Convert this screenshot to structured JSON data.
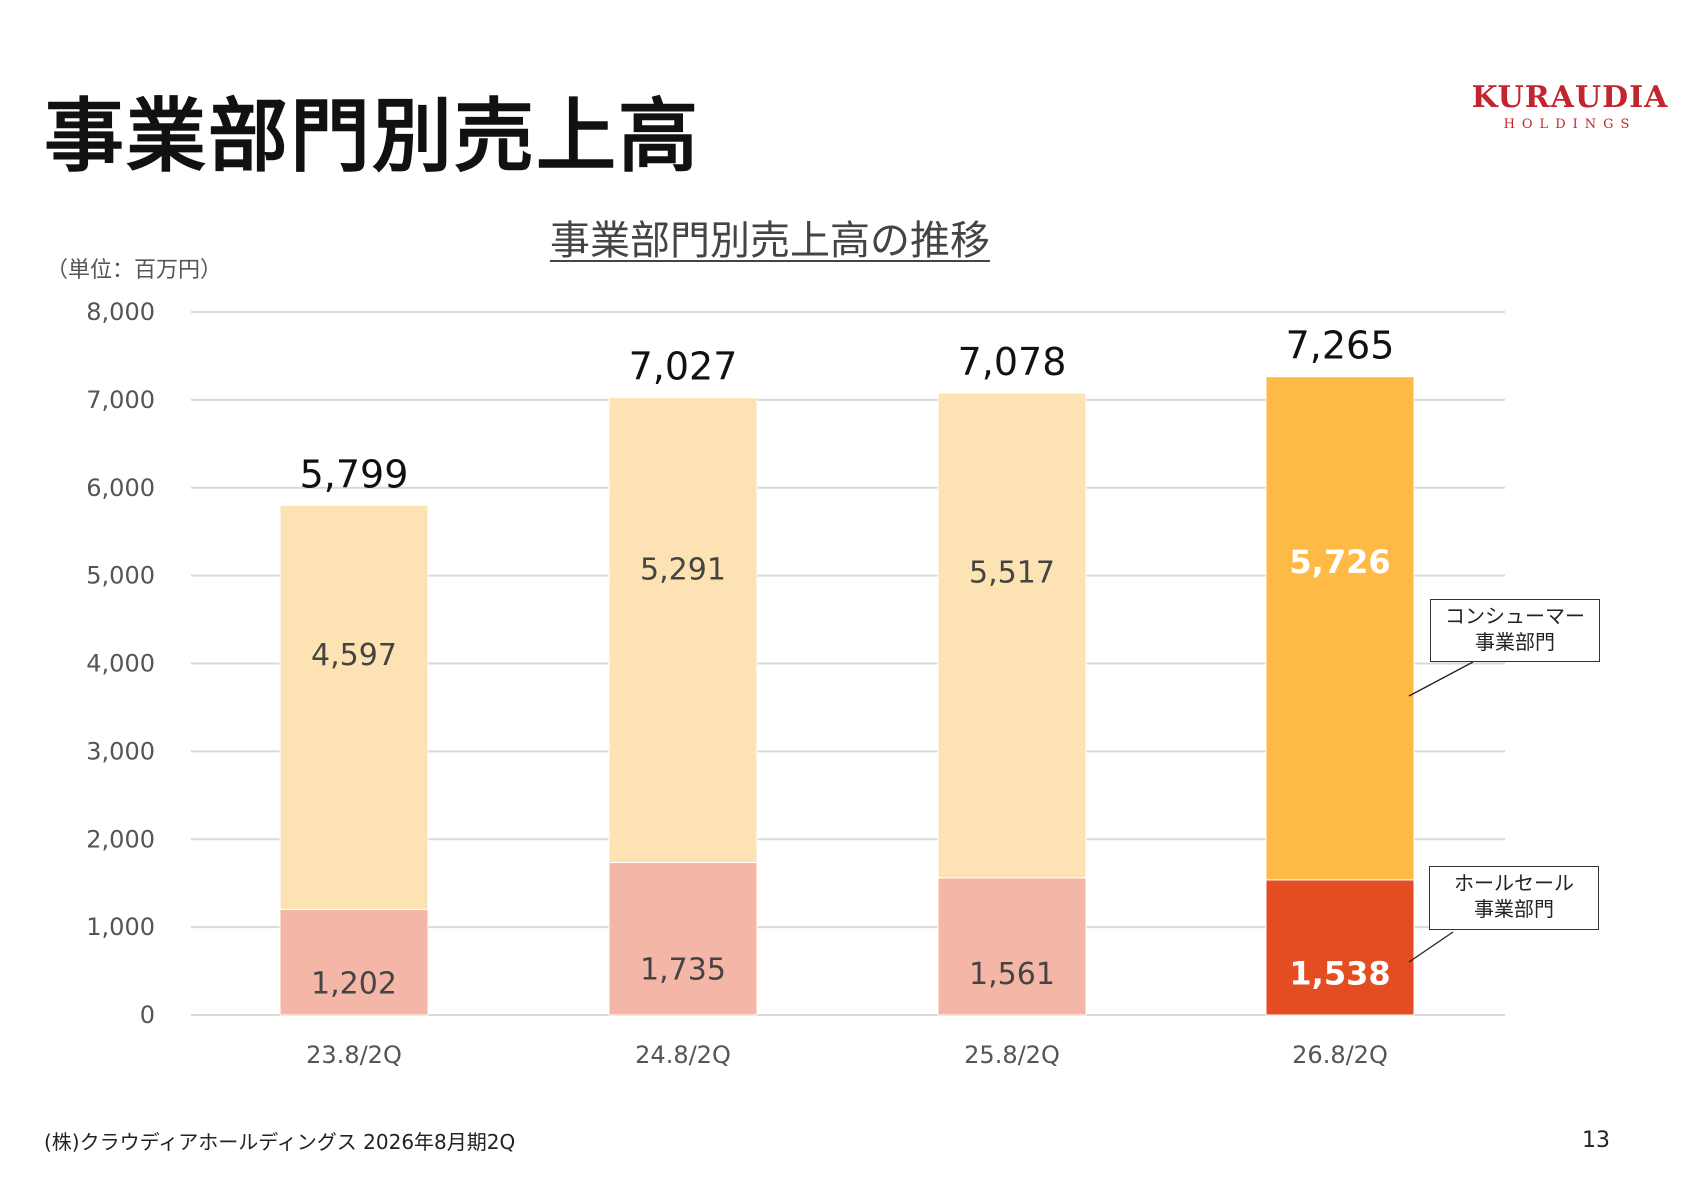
{
  "header": {
    "title": "事業部門別売上高",
    "logo_text": "KURAUDIA",
    "logo_sub": "HOLDINGS"
  },
  "footer": {
    "company": "(株)クラウディアホールディングス  2026年8月期2Q",
    "page": "13"
  },
  "chart_data": {
    "type": "bar",
    "stacked": true,
    "title": "事業部門別売上高の推移",
    "unit_label": "（単位：百万円）",
    "categories": [
      "23.8/2Q",
      "24.8/2Q",
      "25.8/2Q",
      "26.8/2Q"
    ],
    "series": [
      {
        "name": "ホールセール事業部門",
        "values": [
          1202,
          1735,
          1561,
          1538
        ],
        "color": "#F4B6A6",
        "highlight_color": "#E44D22"
      },
      {
        "name": "コンシューマー事業部門",
        "values": [
          4597,
          5291,
          5517,
          5726
        ],
        "color": "#FDE3B3",
        "highlight_color": "#FDBA47"
      }
    ],
    "totals": [
      5799,
      7027,
      7078,
      7265
    ],
    "highlight_index": 3,
    "ylim": [
      0,
      8000
    ],
    "yticks": [
      0,
      1000,
      2000,
      3000,
      4000,
      5000,
      6000,
      7000,
      8000
    ],
    "grid": true,
    "legend": "callouts-right",
    "legend_labels": {
      "consumer": [
        "コンシューマー",
        "事業部門"
      ],
      "wholesale": [
        "ホールセール",
        "事業部門"
      ]
    }
  }
}
